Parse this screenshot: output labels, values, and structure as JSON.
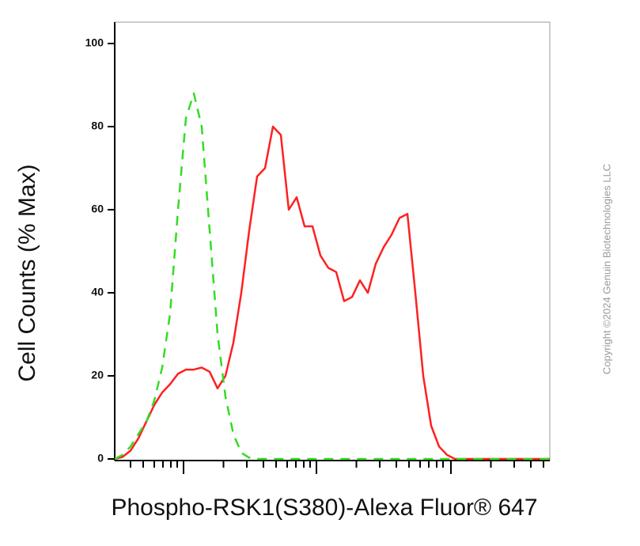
{
  "chart_data": {
    "type": "line",
    "y_label": "Cell Counts (% Max)",
    "x_label": "Phospho-RSK1(S380)-Alexa Fluor® 647",
    "copyright": "Copyright ©2024 Genuin Biotechnologies LLC",
    "x": [
      0,
      2,
      4,
      6,
      8,
      10,
      12,
      14,
      16,
      18,
      20,
      22,
      24,
      26,
      28,
      30,
      32,
      34,
      36,
      38,
      40,
      42,
      44,
      46,
      48,
      50,
      52,
      54,
      56,
      58,
      60,
      62,
      64,
      66,
      68,
      70,
      72,
      74,
      76,
      78,
      80,
      82,
      84,
      86,
      88,
      90,
      92,
      94,
      96,
      98,
      100,
      102,
      104,
      106,
      108,
      110
    ],
    "series": [
      {
        "color": "#ff2020",
        "dashed": false,
        "values": [
          0,
          0.5,
          2,
          5,
          9,
          13,
          16,
          18,
          20.5,
          21.5,
          21.5,
          22,
          21,
          17,
          20,
          28,
          40,
          55,
          68,
          70,
          80,
          78,
          60,
          63,
          56,
          56,
          49,
          46,
          45,
          38,
          39,
          43,
          40,
          47,
          51,
          54,
          58,
          59,
          40,
          20,
          8,
          3,
          1,
          0,
          0,
          0,
          0,
          0,
          0,
          0,
          0,
          0,
          0,
          0,
          0,
          0
        ]
      },
      {
        "color": "#33dd22",
        "dashed": true,
        "values": [
          0,
          1,
          3,
          6,
          9,
          14,
          22,
          35,
          60,
          82,
          88,
          80,
          55,
          30,
          15,
          6,
          1.5,
          0.3,
          0,
          0,
          0,
          0,
          0,
          0,
          0,
          0,
          0,
          0,
          0,
          0,
          0,
          0,
          0,
          0,
          0,
          0,
          0,
          0,
          0,
          0,
          0,
          0,
          0,
          0,
          0,
          0,
          0,
          0,
          0,
          0,
          0,
          0,
          0,
          0,
          0,
          0
        ]
      }
    ],
    "xlim": [
      0,
      110
    ],
    "ylim": [
      0,
      100
    ],
    "yticks": [
      0,
      20,
      40,
      60,
      80,
      100
    ],
    "xticks": [
      17.4,
      51,
      85
    ],
    "x_minor_ticks": [
      4,
      7.2,
      10,
      12.2,
      14.2,
      15.8,
      27.5,
      33.4,
      37.6,
      40.8,
      43.6,
      45.8,
      47.8,
      49.4,
      61.1,
      67,
      71.2,
      74.4,
      77.2,
      79.4,
      81.4,
      83,
      95.1,
      101,
      105.2,
      108.4
    ],
    "log_x": true,
    "grid": false
  }
}
